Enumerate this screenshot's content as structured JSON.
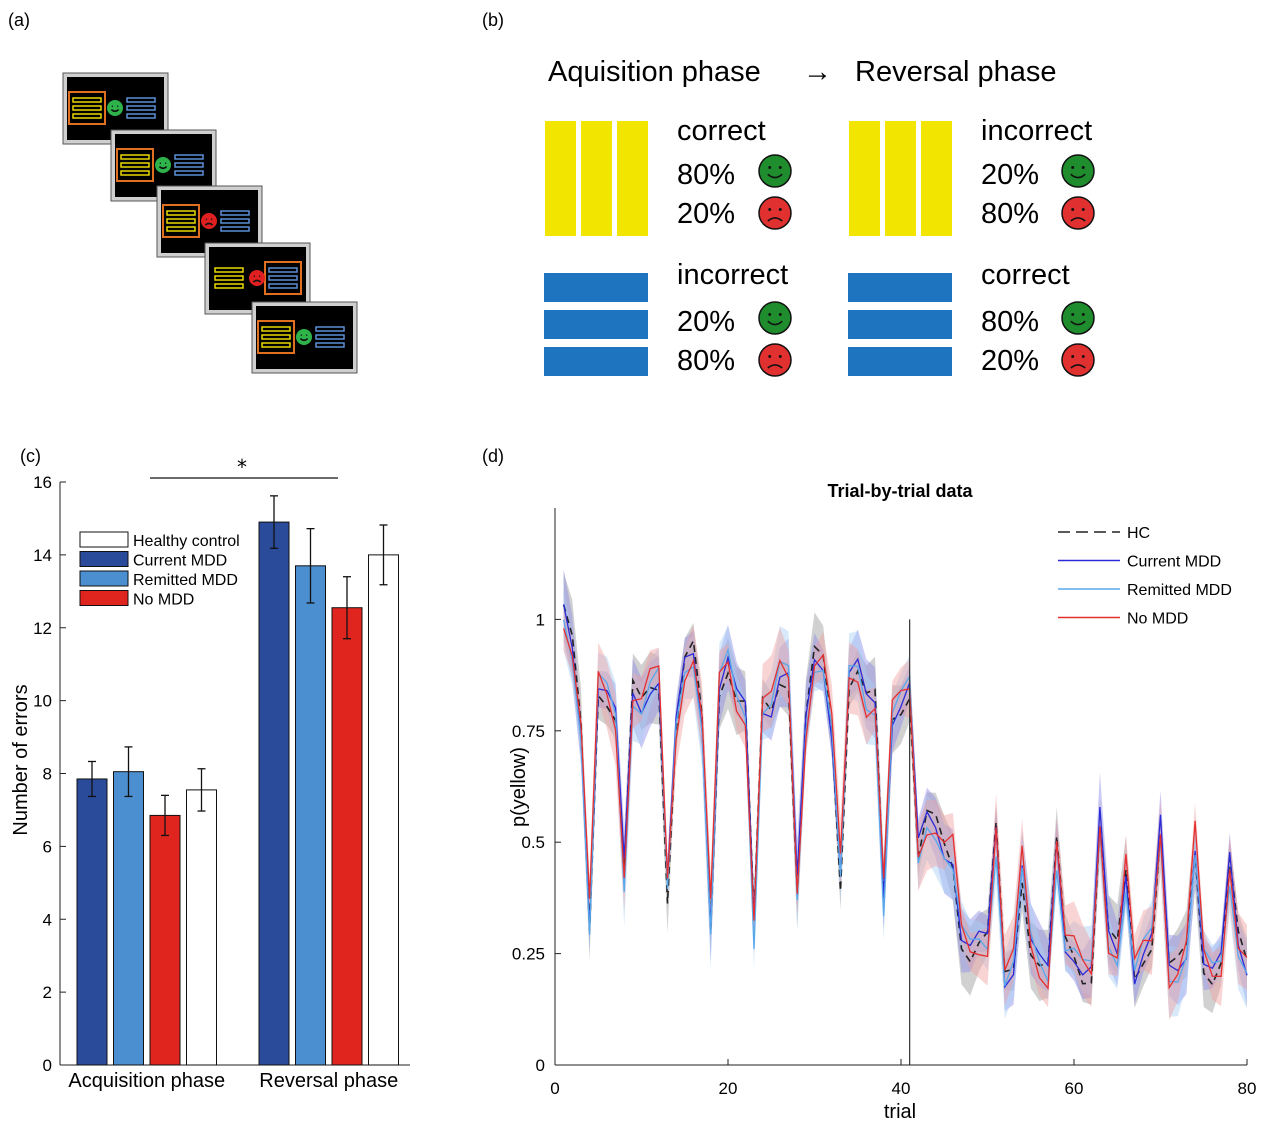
{
  "panel_a": {
    "label": "(a)",
    "screens": [
      {
        "rect_highlight": "yellow",
        "face": "happy"
      },
      {
        "rect_highlight": "yellow",
        "face": "happy"
      },
      {
        "rect_highlight": "yellow",
        "face": "sad"
      },
      {
        "rect_highlight": "blue",
        "face": "sad"
      },
      {
        "rect_highlight": "yellow",
        "face": "happy"
      }
    ],
    "colors": {
      "screen_bg": "#000000",
      "yellow": "#e8d800",
      "blue": "#5a8fd6",
      "orange": "#e07020",
      "green": "#2db34a",
      "red": "#e02020"
    }
  },
  "panel_b": {
    "label": "(b)",
    "header_left": "Aquisition phase",
    "arrow": "→",
    "header_right": "Reversal phase",
    "acquisition": {
      "yellow": {
        "word": "correct",
        "p_happy": "80%",
        "p_sad": "20%"
      },
      "blue": {
        "word": "incorrect",
        "p_happy": "20%",
        "p_sad": "80%"
      }
    },
    "reversal": {
      "yellow": {
        "word": "incorrect",
        "p_happy": "20%",
        "p_sad": "80%"
      },
      "blue": {
        "word": "correct",
        "p_happy": "80%",
        "p_sad": "20%"
      }
    },
    "colors": {
      "yellow": "#f2e500",
      "blue": "#1f74bf",
      "happy": "#1f8c2e",
      "sad": "#e03030"
    }
  },
  "chart_data": [
    {
      "panel_label": "(c)",
      "type": "bar",
      "categories": [
        "Acquisition phase",
        "Reversal phase"
      ],
      "series": [
        {
          "name": "Healthy control",
          "color": "#ffffff",
          "values": [
            7.55,
            14.0
          ],
          "errors": [
            0.58,
            0.82
          ]
        },
        {
          "name": "Current MDD",
          "color": "#2a4a9a",
          "values": [
            7.85,
            14.9
          ],
          "errors": [
            0.48,
            0.72
          ]
        },
        {
          "name": "Remitted MDD",
          "color": "#4c8fd0",
          "values": [
            8.05,
            13.7
          ],
          "errors": [
            0.68,
            1.02
          ]
        },
        {
          "name": "No MDD",
          "color": "#e0241e",
          "values": [
            6.85,
            12.55
          ],
          "errors": [
            0.55,
            0.85
          ]
        }
      ],
      "bar_order": [
        "Current MDD",
        "Remitted MDD",
        "No MDD",
        "Healthy control"
      ],
      "ylabel": "Number of errors",
      "ylim": [
        0,
        16
      ],
      "yticks": [
        "0",
        "2",
        "4",
        "6",
        "8",
        "10",
        "12",
        "14",
        "16"
      ],
      "significance": "*",
      "legend_position": "top-left"
    },
    {
      "panel_label": "(d)",
      "type": "line",
      "title": "Trial-by-trial data",
      "xlabel": "trial",
      "ylabel": "p(yellow)",
      "xlim": [
        0,
        80
      ],
      "ylim": [
        0,
        1.25
      ],
      "xticks": [
        "0",
        "20",
        "40",
        "60",
        "80"
      ],
      "yticks": [
        "0",
        "0.25",
        "0.5",
        "0.75",
        "1"
      ],
      "reversal_line_x": 41,
      "legend_position": "top-right",
      "series": [
        {
          "name": "HC",
          "color": "#222222",
          "dash": true,
          "band": "#9a9a9a",
          "dip_depth": 0.0
        },
        {
          "name": "Current MDD",
          "color": "#2a2ad8",
          "dash": false,
          "band": "#8a8ae8",
          "dip_depth": 0.02
        },
        {
          "name": "Remitted MDD",
          "color": "#58a8ec",
          "dash": false,
          "band": "#a8d0f4",
          "dip_depth": -0.02
        },
        {
          "name": "No MDD",
          "color": "#e63030",
          "dash": false,
          "band": "#f0a0a0",
          "dip_depth": 0.03
        }
      ],
      "dip_trials": [
        4,
        8,
        13,
        18,
        23,
        28,
        33,
        38,
        42,
        46,
        51,
        54,
        58,
        63,
        66,
        70,
        74,
        78
      ],
      "approx_levels": {
        "acquisition_mean": 0.87,
        "acquisition_dip": 0.38,
        "reversal_mean": 0.27,
        "reversal_peak": 0.5
      }
    }
  ]
}
